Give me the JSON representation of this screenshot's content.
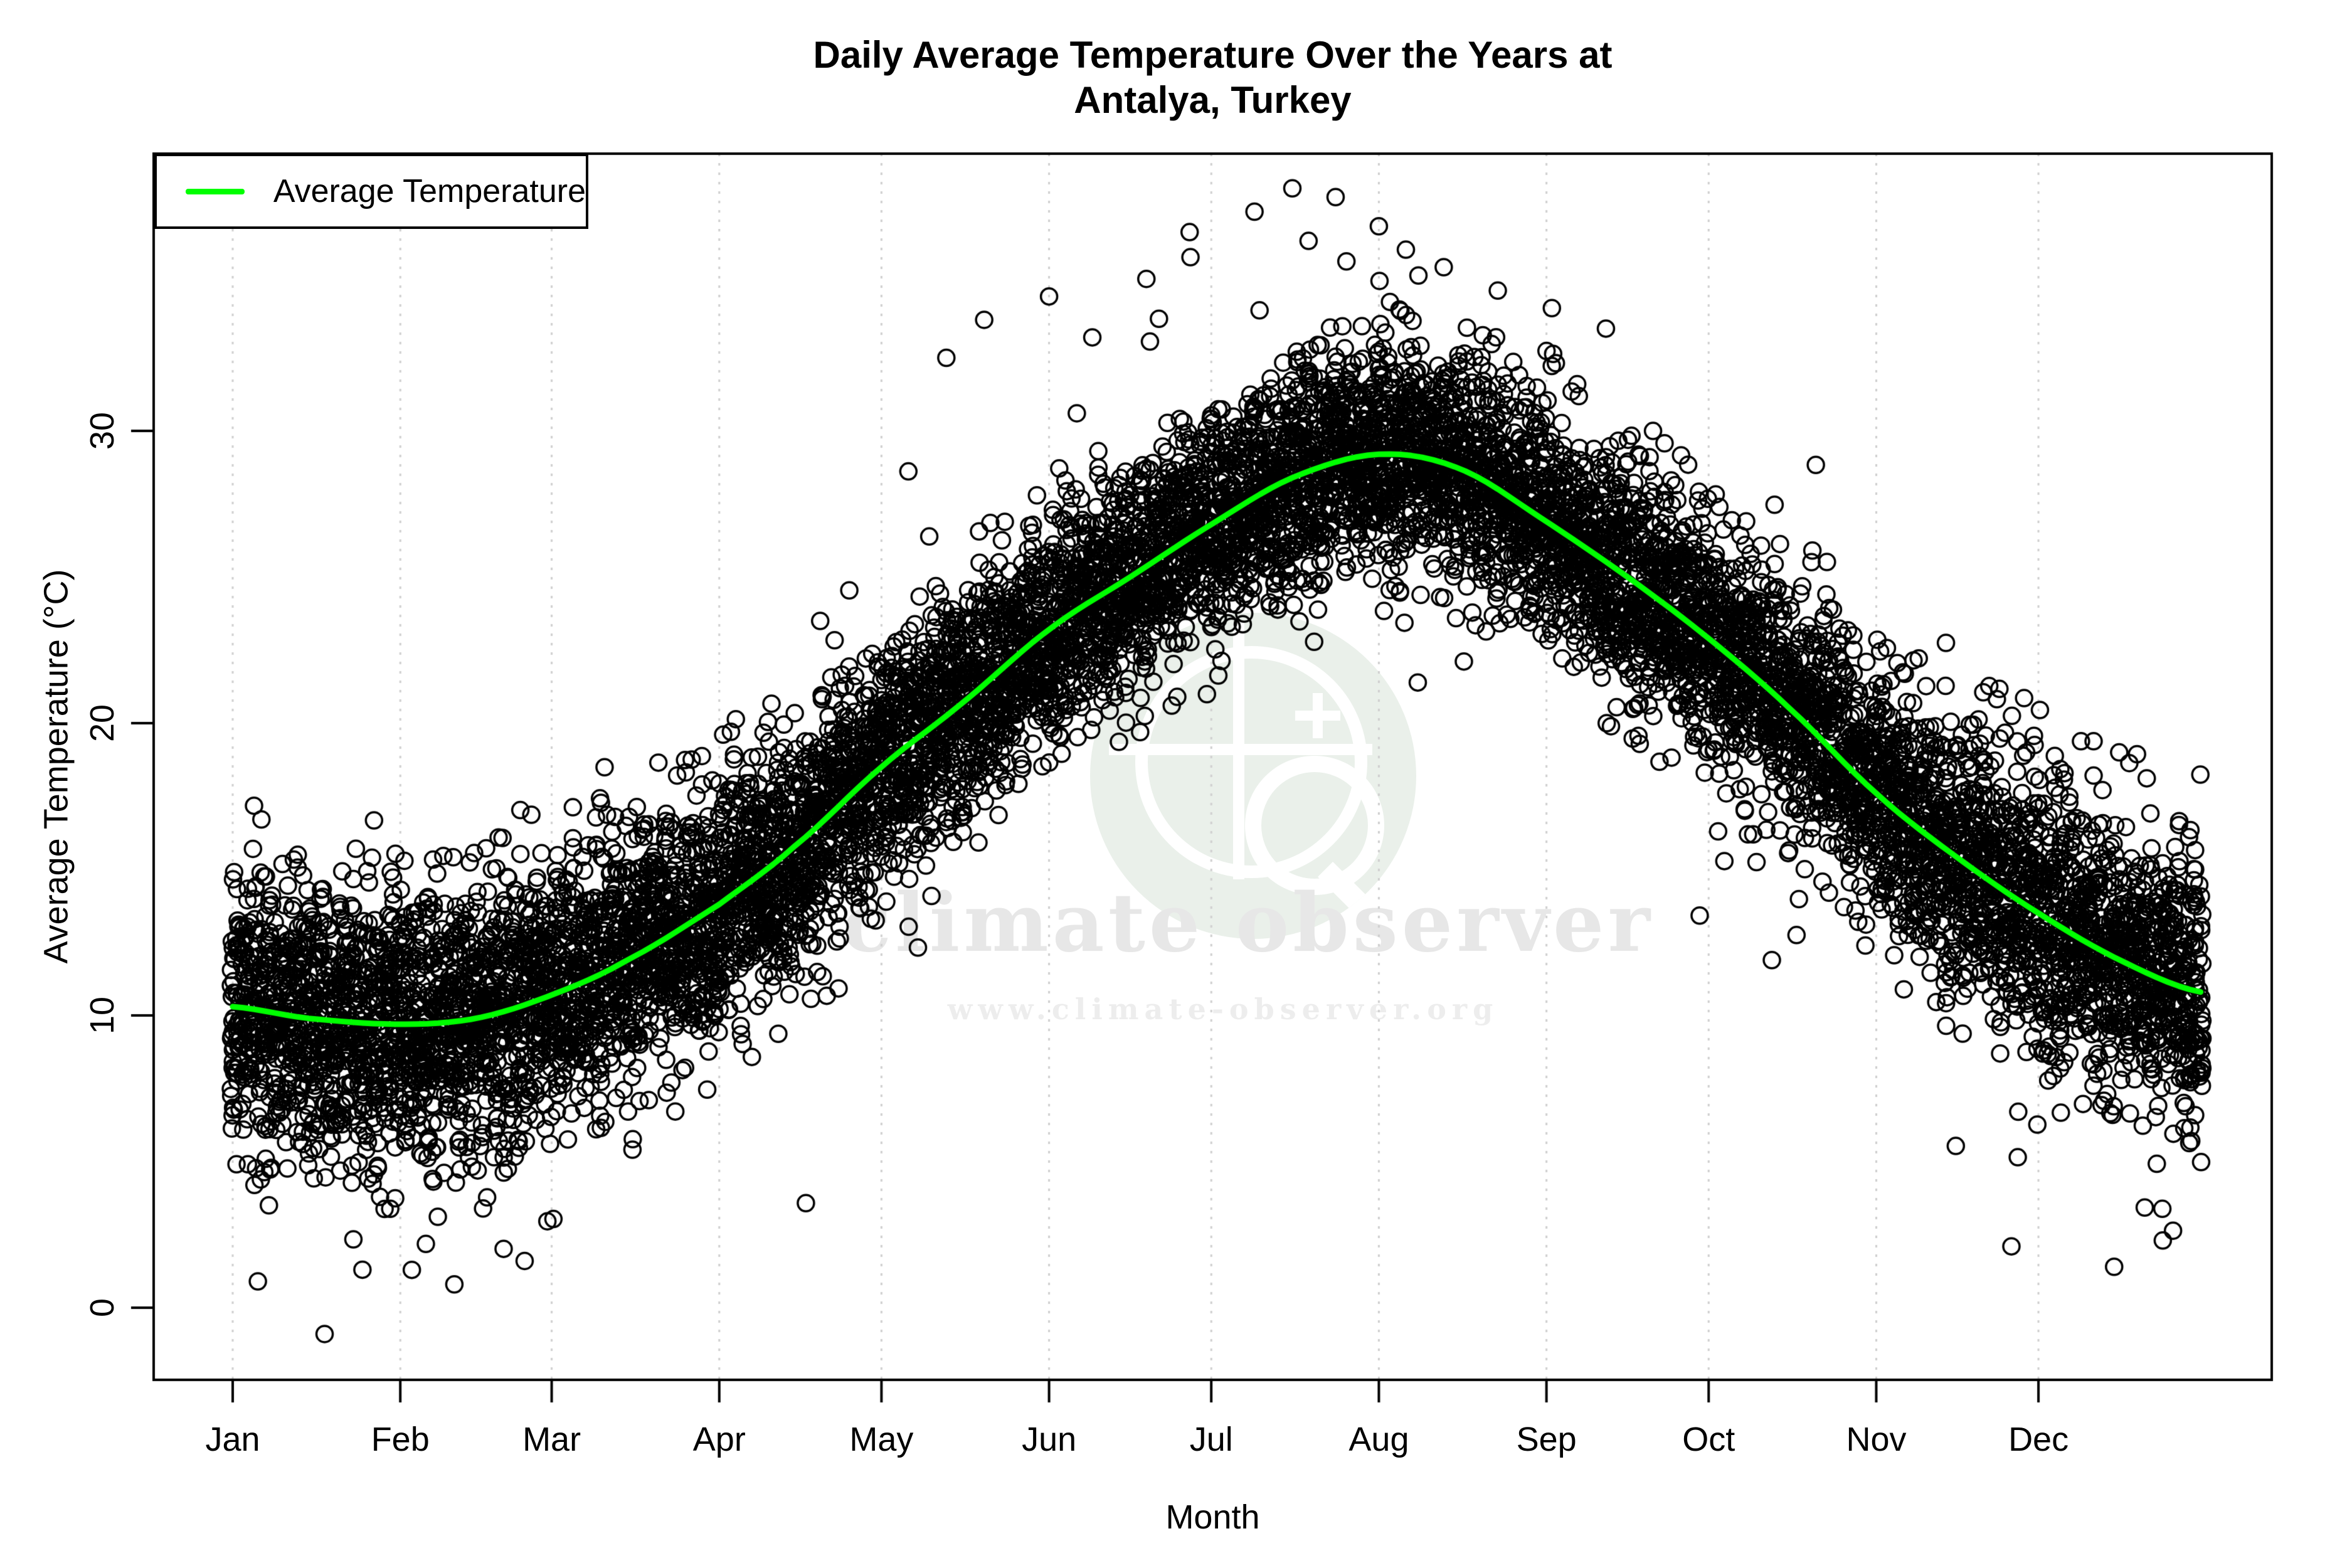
{
  "title": {
    "line1": "Daily Average Temperature Over the Years at",
    "line2": "Antalya, Turkey"
  },
  "legend": {
    "label": "Average Temperature"
  },
  "axes": {
    "x": {
      "title": "Month",
      "tick_labels": [
        "Jan",
        "Feb",
        "Mar",
        "Apr",
        "May",
        "Jun",
        "Jul",
        "Aug",
        "Sep",
        "Oct",
        "Nov",
        "Dec"
      ]
    },
    "y": {
      "title": "Average Temperature (°C)",
      "tick_labels": [
        "0",
        "10",
        "20",
        "30"
      ],
      "tick_values": [
        0,
        10,
        20,
        30
      ]
    }
  },
  "watermark": {
    "brand": "climate observer",
    "url": "www.climate-observer.org",
    "logo": "globe-with-magnifier"
  },
  "colors": {
    "trend_line": "#00ff00",
    "points": "#000000",
    "gridline": "#cfcfcf",
    "axis": "#000000",
    "background": "#ffffff",
    "watermark_text": "#e7e7e7",
    "watermark_url_text": "#ededed",
    "watermark_logo_fill": "#eaf0ea"
  },
  "chart_data": {
    "type": "scatter",
    "title": "Daily Average Temperature Over the Years at Antalya, Turkey",
    "xlabel": "Month",
    "ylabel": "Average Temperature (°C)",
    "x_unit": "day_of_year",
    "x_range": [
      1,
      365
    ],
    "y_ticks": [
      0,
      10,
      20,
      30
    ],
    "ylim": [
      -2.4,
      39.5
    ],
    "grid": "vertical dotted gridlines at month starts",
    "legend_position": "top-left",
    "month_start_days": [
      1,
      32,
      60,
      91,
      121,
      152,
      182,
      213,
      244,
      274,
      305,
      335
    ],
    "trend_series": {
      "name": "Average Temperature",
      "style": "smooth line",
      "knots_day": [
        1,
        15,
        32,
        46,
        60,
        74,
        91,
        105,
        121,
        136,
        152,
        167,
        182,
        197,
        213,
        228,
        244,
        259,
        274,
        289,
        305,
        320,
        335,
        350,
        365
      ],
      "knots_temp": [
        10.3,
        9.9,
        9.7,
        9.9,
        10.7,
        11.9,
        13.8,
        15.8,
        18.5,
        20.7,
        23.2,
        25.0,
        26.8,
        28.4,
        29.2,
        28.7,
        26.9,
        25.0,
        22.9,
        20.5,
        17.6,
        15.4,
        13.5,
        11.9,
        10.8
      ],
      "peak": {
        "day": 213,
        "temp": 29.2
      },
      "min": {
        "day": 32,
        "temp": 9.7
      }
    },
    "scatter_series": {
      "name": "daily average temperatures over the years",
      "marker": "open-circle",
      "render_params": {
        "years_overplotted": 28,
        "noise_sd_winter": 2.38,
        "noise_sd_summer": 1.82,
        "heavy_tail_fraction": 0.025,
        "heavy_tail_sd_multiplier": 1.9,
        "seed": 1234
      },
      "outlier_points_day_temp": [
        [
          18,
          -0.9
        ],
        [
          25,
          1.3
        ],
        [
          42,
          0.8
        ],
        [
          55,
          1.6
        ],
        [
          330,
          2.1
        ],
        [
          349,
          1.4
        ],
        [
          358,
          2.3
        ],
        [
          133,
          32.5
        ],
        [
          140,
          33.8
        ],
        [
          152,
          34.6
        ],
        [
          160,
          33.2
        ],
        [
          170,
          35.2
        ],
        [
          178,
          36.8
        ],
        [
          190,
          37.5
        ],
        [
          197,
          38.3
        ],
        [
          200,
          36.5
        ],
        [
          205,
          38.0
        ],
        [
          207,
          35.8
        ],
        [
          213,
          37.0
        ],
        [
          218,
          36.2
        ],
        [
          225,
          35.6
        ],
        [
          235,
          34.8
        ],
        [
          245,
          34.2
        ],
        [
          255,
          33.5
        ]
      ]
    }
  }
}
